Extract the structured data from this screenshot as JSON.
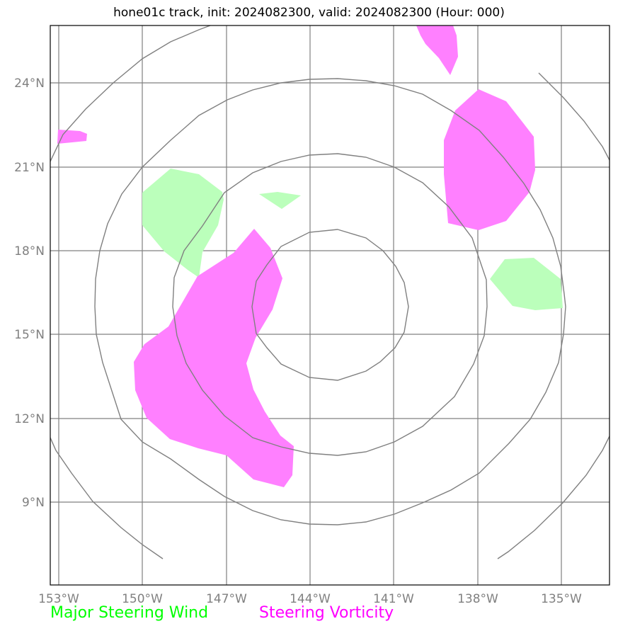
{
  "title": "hone01c track, init: 2024082300, valid: 2024082300 (Hour: 000)",
  "map": {
    "lat_labels": [
      "24°N",
      "21°N",
      "18°N",
      "15°N",
      "12°N",
      "9°N"
    ],
    "lon_labels": [
      "153°W",
      "150°W",
      "147°W",
      "144°W",
      "141°W",
      "138°W",
      "135°W"
    ],
    "gridline_color": "#808080",
    "ring_color": "#808080"
  },
  "legend": {
    "wind_label": "Major Steering Wind",
    "wind_color": "#00ff00",
    "vorticity_label": "Steering Vorticity",
    "vorticity_color": "#ff00ff"
  },
  "colors": {
    "wind_fill": "#bbffbb",
    "vorticity_fill": "#ff80ff"
  }
}
